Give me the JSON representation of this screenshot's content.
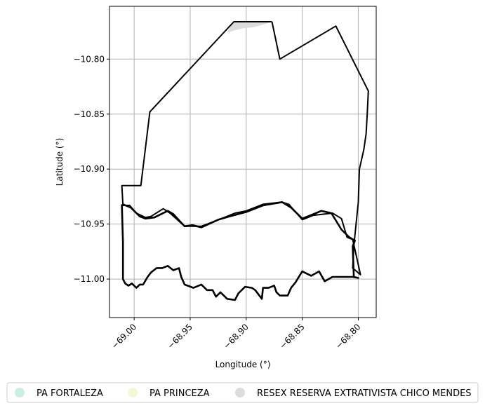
{
  "chart_data": {
    "type": "map",
    "xlabel": "Longitude (°)",
    "ylabel": "Latitude (°)",
    "xlim": [
      -69.022,
      -68.784
    ],
    "ylim": [
      -11.035,
      -10.752
    ],
    "x_ticks": [
      -69.0,
      -68.95,
      -68.9,
      -68.85,
      -68.8
    ],
    "x_tick_labels": [
      "−69.00",
      "−68.95",
      "−68.90",
      "−68.85",
      "−68.80"
    ],
    "y_ticks": [
      -10.8,
      -10.85,
      -10.9,
      -10.95,
      -11.0
    ],
    "y_tick_labels": [
      "−10.80",
      "−10.85",
      "−10.90",
      "−10.95",
      "−11.00"
    ],
    "grid": true,
    "legend_position": "bottom-center",
    "legend": [
      {
        "label": "PA FORTALEZA",
        "color": "#cdeee3"
      },
      {
        "label": "PA PRINCEZA",
        "color": "#f3f8d8"
      },
      {
        "label": "RESEX RESERVA EXTRATIVISTA CHICO MENDES",
        "color": "#dcdcdc"
      }
    ],
    "boundaries": [
      {
        "name": "outer-boundary",
        "coords": [
          [
            -68.877,
            -10.766
          ],
          [
            -68.87,
            -10.8
          ],
          [
            -68.82,
            -10.77
          ],
          [
            -68.791,
            -10.829
          ],
          [
            -68.792,
            -10.85
          ],
          [
            -68.793,
            -10.868
          ],
          [
            -68.795,
            -10.882
          ],
          [
            -68.799,
            -10.9
          ],
          [
            -68.8,
            -10.93
          ],
          [
            -68.803,
            -10.96
          ],
          [
            -68.804,
            -10.97
          ],
          [
            -68.805,
            -10.99
          ],
          [
            -68.798,
            -10.996
          ],
          [
            -68.805,
            -10.964
          ],
          [
            -68.81,
            -10.962
          ],
          [
            -68.815,
            -10.945
          ],
          [
            -68.823,
            -10.94
          ],
          [
            -68.84,
            -10.942
          ],
          [
            -68.85,
            -10.946
          ],
          [
            -68.862,
            -10.932
          ],
          [
            -68.868,
            -10.93
          ],
          [
            -68.885,
            -10.932
          ],
          [
            -68.9,
            -10.938
          ],
          [
            -68.91,
            -10.94
          ],
          [
            -68.922,
            -10.945
          ],
          [
            -68.94,
            -10.952
          ],
          [
            -68.955,
            -10.952
          ],
          [
            -68.968,
            -10.94
          ],
          [
            -68.974,
            -10.936
          ],
          [
            -68.985,
            -10.943
          ],
          [
            -68.99,
            -10.944
          ],
          [
            -68.998,
            -10.94
          ],
          [
            -69.004,
            -10.933
          ],
          [
            -69.01,
            -10.933
          ],
          [
            -69.011,
            -10.915
          ],
          [
            -68.994,
            -10.915
          ],
          [
            -68.986,
            -10.848
          ],
          [
            -68.911,
            -10.766
          ],
          [
            -68.877,
            -10.766
          ]
        ]
      },
      {
        "name": "inner-boundary",
        "coords": [
          [
            -69.01,
            -10.932
          ],
          [
            -69.003,
            -10.935
          ],
          [
            -68.995,
            -10.943
          ],
          [
            -68.99,
            -10.945
          ],
          [
            -68.982,
            -10.944
          ],
          [
            -68.97,
            -10.938
          ],
          [
            -68.965,
            -10.941
          ],
          [
            -68.955,
            -10.952
          ],
          [
            -68.948,
            -10.951
          ],
          [
            -68.94,
            -10.953
          ],
          [
            -68.925,
            -10.946
          ],
          [
            -68.915,
            -10.943
          ],
          [
            -68.9,
            -10.939
          ],
          [
            -68.885,
            -10.933
          ],
          [
            -68.868,
            -10.93
          ],
          [
            -68.86,
            -10.935
          ],
          [
            -68.85,
            -10.945
          ],
          [
            -68.84,
            -10.941
          ],
          [
            -68.833,
            -10.938
          ],
          [
            -68.824,
            -10.94
          ],
          [
            -68.815,
            -10.955
          ],
          [
            -68.808,
            -10.962
          ],
          [
            -68.803,
            -10.965
          ],
          [
            -68.805,
            -10.97
          ],
          [
            -68.804,
            -10.998
          ],
          [
            -68.8,
            -10.999
          ],
          [
            -68.805,
            -10.998
          ],
          [
            -68.813,
            -10.998
          ],
          [
            -68.823,
            -10.998
          ],
          [
            -68.83,
            -11.002
          ],
          [
            -68.835,
            -10.993
          ],
          [
            -68.842,
            -10.997
          ],
          [
            -68.85,
            -10.993
          ],
          [
            -68.856,
            -11.003
          ],
          [
            -68.86,
            -11.008
          ],
          [
            -68.863,
            -11.015
          ],
          [
            -68.87,
            -11.015
          ],
          [
            -68.873,
            -11.012
          ],
          [
            -68.875,
            -11.006
          ],
          [
            -68.88,
            -11.008
          ],
          [
            -68.885,
            -11.008
          ],
          [
            -68.886,
            -11.018
          ],
          [
            -68.892,
            -11.01
          ],
          [
            -68.895,
            -11.008
          ],
          [
            -68.901,
            -11.007
          ],
          [
            -68.907,
            -11.013
          ],
          [
            -68.91,
            -11.019
          ],
          [
            -68.917,
            -11.018
          ],
          [
            -68.923,
            -11.012
          ],
          [
            -68.927,
            -11.016
          ],
          [
            -68.93,
            -11.01
          ],
          [
            -68.935,
            -11.01
          ],
          [
            -68.94,
            -11.005
          ],
          [
            -68.947,
            -11.008
          ],
          [
            -68.955,
            -11.005
          ],
          [
            -68.958,
            -10.998
          ],
          [
            -68.96,
            -10.99
          ],
          [
            -68.965,
            -10.992
          ],
          [
            -68.97,
            -10.988
          ],
          [
            -68.975,
            -10.99
          ],
          [
            -68.98,
            -10.99
          ],
          [
            -68.985,
            -10.994
          ],
          [
            -68.988,
            -10.998
          ],
          [
            -68.992,
            -11.005
          ],
          [
            -68.995,
            -11.005
          ],
          [
            -68.998,
            -11.008
          ],
          [
            -69.002,
            -11.004
          ],
          [
            -69.005,
            -11.006
          ],
          [
            -69.008,
            -11.004
          ],
          [
            -69.01,
            -11.0
          ],
          [
            -69.01,
            -10.967
          ],
          [
            -69.011,
            -10.932
          ]
        ]
      }
    ],
    "areas": [
      {
        "name": "RESEX RESERVA EXTRATIVISTA CHICO MENDES",
        "color": "#dcdcdc",
        "coords": [
          [
            -68.912,
            -10.766
          ],
          [
            -68.877,
            -10.766
          ],
          [
            -68.883,
            -10.768
          ],
          [
            -68.893,
            -10.771
          ],
          [
            -68.903,
            -10.772
          ],
          [
            -68.911,
            -10.774
          ],
          [
            -68.917,
            -10.776
          ],
          [
            -68.912,
            -10.766
          ]
        ]
      }
    ]
  }
}
